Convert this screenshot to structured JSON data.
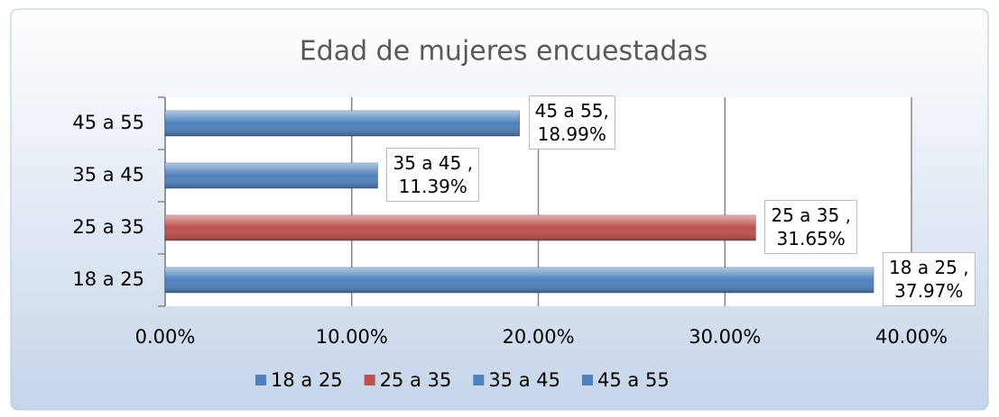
{
  "chart_data": {
    "type": "bar",
    "orientation": "horizontal",
    "title": "Edad de mujeres encuestadas",
    "categories": [
      "18 a 25",
      "25 a 35",
      "35 a 45",
      "45 a 55"
    ],
    "series": [
      {
        "name": "18 a 25",
        "color": "#4f81bd",
        "values": [
          37.97,
          null,
          null,
          null
        ],
        "value_labels": [
          "18 a 25 ,\n37.97%",
          null,
          null,
          null
        ]
      },
      {
        "name": "25 a 35",
        "color": "#c0504d",
        "values": [
          null,
          31.65,
          null,
          null
        ],
        "value_labels": [
          null,
          "25 a 35 ,\n31.65%",
          null,
          null
        ]
      },
      {
        "name": "35 a 45",
        "color": "#4f81bd",
        "values": [
          null,
          null,
          11.39,
          null
        ],
        "value_labels": [
          null,
          null,
          "35 a 45 ,\n11.39%",
          null
        ]
      },
      {
        "name": "45 a 55",
        "color": "#4f81bd",
        "values": [
          null,
          null,
          null,
          18.99
        ],
        "value_labels": [
          null,
          null,
          null,
          "45 a 55,\n18.99%"
        ]
      }
    ],
    "xlim": [
      0,
      40
    ],
    "xticks": [
      {
        "value": 0,
        "label": "0.00%"
      },
      {
        "value": 10,
        "label": "10.00%"
      },
      {
        "value": 20,
        "label": "20.00%"
      },
      {
        "value": 30,
        "label": "30.00%"
      },
      {
        "value": 40,
        "label": "40.00%"
      }
    ],
    "grid": true,
    "legend": "bottom"
  }
}
